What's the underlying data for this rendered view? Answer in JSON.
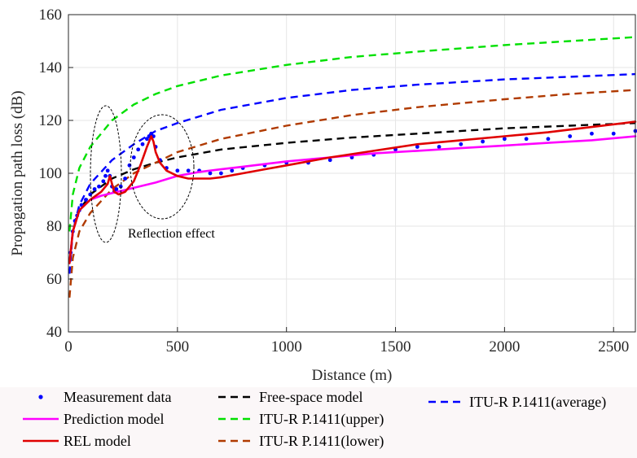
{
  "chart_data": {
    "type": "line",
    "xlabel": "Distance (m)",
    "ylabel": "Propagation path loss (dB)",
    "xlim": [
      0,
      2600
    ],
    "ylim": [
      40,
      160
    ],
    "x_ticks": [
      0,
      500,
      1000,
      1500,
      2000,
      2500
    ],
    "y_ticks": [
      40,
      60,
      80,
      100,
      120,
      140,
      160
    ],
    "grid": true,
    "legend_position": "bottom",
    "annotation": "Reflection effect",
    "series": [
      {
        "name": "Measurement data",
        "style": "scatter",
        "color": "#0000ff",
        "x": [
          10,
          20,
          30,
          40,
          50,
          60,
          80,
          100,
          120,
          140,
          160,
          170,
          180,
          190,
          200,
          210,
          220,
          240,
          260,
          280,
          300,
          320,
          340,
          360,
          370,
          380,
          390,
          400,
          420,
          450,
          500,
          550,
          600,
          650,
          700,
          750,
          800,
          900,
          1000,
          1100,
          1200,
          1300,
          1400,
          1500,
          1600,
          1700,
          1800,
          1900,
          2000,
          2100,
          2200,
          2300,
          2400,
          2500,
          2600
        ],
        "y": [
          70,
          78,
          82,
          84,
          86,
          88,
          90,
          92,
          94,
          95,
          97,
          99,
          101,
          99,
          95,
          93,
          94,
          95,
          98,
          103,
          106,
          109,
          111,
          113,
          114,
          115,
          114,
          110,
          105,
          102,
          101,
          101,
          101,
          100,
          100,
          101,
          102,
          103,
          104,
          104,
          105,
          106,
          107,
          109,
          110,
          110,
          111,
          112,
          113,
          113,
          113,
          114,
          115,
          115,
          116
        ]
      },
      {
        "name": "Prediction model",
        "style": "solid",
        "color": "#ff00ff",
        "x": [
          5,
          20,
          50,
          100,
          150,
          200,
          250,
          300,
          400,
          500,
          600,
          700,
          800,
          1000,
          1200,
          1400,
          1600,
          1800,
          2000,
          2200,
          2400,
          2600
        ],
        "y": [
          66,
          78,
          86,
          90,
          91.5,
          92.5,
          93.5,
          94.5,
          96.5,
          99,
          100.5,
          101.5,
          102.5,
          104.5,
          106,
          107.5,
          108.5,
          109.5,
          110.5,
          111.5,
          112.5,
          114
        ]
      },
      {
        "name": "REL model",
        "style": "solid",
        "color": "#e00000",
        "x": [
          5,
          20,
          50,
          100,
          150,
          180,
          190,
          200,
          210,
          230,
          260,
          300,
          330,
          360,
          380,
          390,
          400,
          420,
          450,
          500,
          550,
          600,
          650,
          700,
          800,
          900,
          1000,
          1200,
          1400,
          1600,
          1800,
          2000,
          2200,
          2400,
          2600
        ],
        "y": [
          66,
          78,
          86,
          90,
          93,
          96,
          99,
          96,
          93,
          92,
          93,
          97,
          103,
          110,
          114,
          112,
          108,
          104,
          101,
          99,
          98,
          98,
          98,
          98.5,
          100,
          101.5,
          103,
          106,
          108.5,
          111,
          112.5,
          114,
          115.5,
          117.5,
          119.5
        ]
      },
      {
        "name": "Free-space model",
        "style": "dashed",
        "color": "#000000",
        "x": [
          5,
          20,
          50,
          100,
          200,
          300,
          400,
          500,
          700,
          1000,
          1300,
          1600,
          2000,
          2300,
          2600
        ],
        "y": [
          66,
          78,
          86,
          92,
          98,
          101.5,
          104,
          106,
          109,
          111.5,
          113.5,
          115,
          117,
          118,
          119
        ]
      },
      {
        "name": "ITU-R P.1411(upper)",
        "style": "dashed",
        "color": "#00e000",
        "x": [
          5,
          20,
          50,
          100,
          200,
          300,
          400,
          500,
          700,
          1000,
          1300,
          1600,
          2000,
          2300,
          2600
        ],
        "y": [
          78,
          92,
          102,
          110,
          120,
          126,
          130,
          133,
          137,
          141,
          144,
          146,
          148.5,
          150,
          151.5
        ]
      },
      {
        "name": "ITU-R P.1411(lower)",
        "style": "dashed",
        "color": "#b03a00",
        "x": [
          5,
          20,
          50,
          100,
          200,
          300,
          400,
          500,
          700,
          1000,
          1300,
          1600,
          2000,
          2300,
          2600
        ],
        "y": [
          53,
          68,
          78,
          85,
          94,
          100,
          104,
          108,
          113,
          118,
          122,
          125,
          128,
          130,
          131.5
        ]
      },
      {
        "name": "ITU-R P.1411(average)",
        "style": "dashed",
        "color": "#0000ff",
        "x": [
          5,
          20,
          50,
          100,
          200,
          300,
          400,
          500,
          700,
          1000,
          1300,
          1600,
          2000,
          2300,
          2600
        ],
        "y": [
          62,
          78,
          88,
          96,
          105,
          111,
          116,
          119,
          124,
          128.5,
          131.5,
          133.5,
          135.5,
          136.5,
          137.5
        ]
      }
    ]
  }
}
